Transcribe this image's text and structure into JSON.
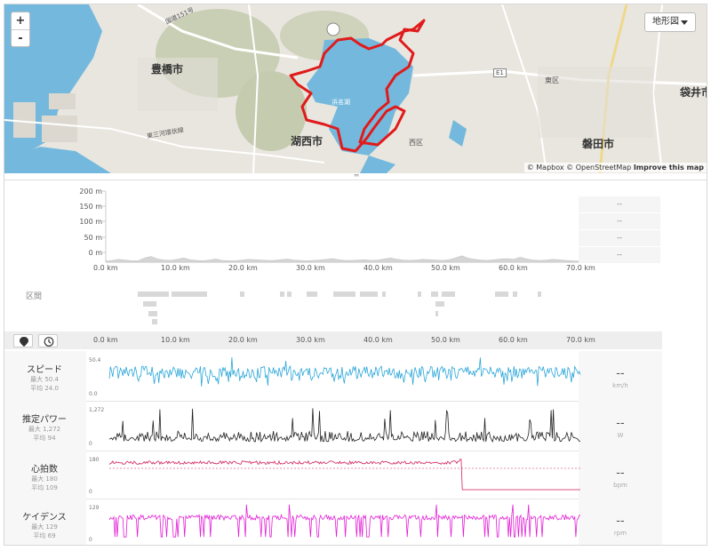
{
  "map": {
    "zoom_in": "+",
    "zoom_out": "-",
    "layer_label": "地形図",
    "attribution_mapbox": "© Mapbox",
    "attribution_osm": "© OpenStreetMap",
    "attribution_improve": "Improve this map",
    "labels": {
      "toyohashi": "豊橋市",
      "kosai": "湖西市",
      "iwata": "磐田市",
      "fukuroi": "袋井市",
      "higashi": "東区",
      "nishi": "西区",
      "lake": "浜名湖",
      "pref_route": "国道151号",
      "east_ring": "東三河環状線",
      "expressway": "E1"
    },
    "route_shields": [
      "51",
      "1",
      "2",
      "2",
      "3",
      "404",
      "409",
      "301",
      "319",
      "319",
      "48",
      "315",
      "44",
      "45",
      "283",
      "318"
    ]
  },
  "elevation": {
    "y_labels": [
      "200 m",
      "150 m",
      "100 m",
      "50 m",
      "0 m"
    ],
    "x_labels": [
      "0.0 km",
      "10.0 km",
      "20.0 km",
      "30.0 km",
      "40.0 km",
      "50.0 km",
      "60.0 km",
      "70.0 km"
    ],
    "side_values": [
      "--",
      "--",
      "--",
      "--"
    ],
    "profile": [
      3,
      5,
      8,
      6,
      4,
      4,
      12,
      16,
      9,
      6,
      5,
      8,
      12,
      7,
      5,
      4,
      6,
      9,
      5,
      4,
      4,
      6,
      8,
      7,
      6,
      5,
      5,
      7,
      9,
      6,
      5,
      4,
      5,
      6,
      8,
      10,
      7,
      5,
      5,
      6,
      7,
      5,
      6,
      9,
      12,
      8,
      6,
      5,
      6,
      8,
      7,
      6,
      5,
      7,
      12,
      18,
      11,
      8,
      6,
      5,
      7,
      9,
      10,
      8,
      14,
      9,
      6,
      5,
      6,
      8,
      7,
      5,
      4,
      3
    ]
  },
  "segments": {
    "title": "区間"
  },
  "timeline": {
    "x_labels": [
      "0.0 km",
      "10.0 km",
      "20.0 km",
      "30.0 km",
      "40.0 km",
      "50.0 km",
      "60.0 km",
      "70.0 km"
    ]
  },
  "metrics": [
    {
      "key": "speed",
      "name": "スピード",
      "max": "最大 50.4",
      "avg": "平均 24.0",
      "value": "--",
      "unit": "km/h",
      "scale_top": "50.4",
      "scale_bottom": "0.0",
      "color": "#2aa6d8"
    },
    {
      "key": "power",
      "name": "推定パワー",
      "max": "最大 1,272",
      "avg": "平均 94",
      "value": "--",
      "unit": "W",
      "scale_top": "1,272",
      "scale_bottom": "0",
      "color": "#222222"
    },
    {
      "key": "hr",
      "name": "心拍数",
      "max": "最大 180",
      "avg": "平均 109",
      "value": "--",
      "unit": "bpm",
      "scale_top": "180",
      "scale_bottom": "0",
      "color": "#d0215b"
    },
    {
      "key": "cadence",
      "name": "ケイデンス",
      "max": "最大 129",
      "avg": "平均 69",
      "value": "--",
      "unit": "rpm",
      "scale_top": "129",
      "scale_bottom": "0",
      "color": "#e21fd6"
    }
  ]
}
